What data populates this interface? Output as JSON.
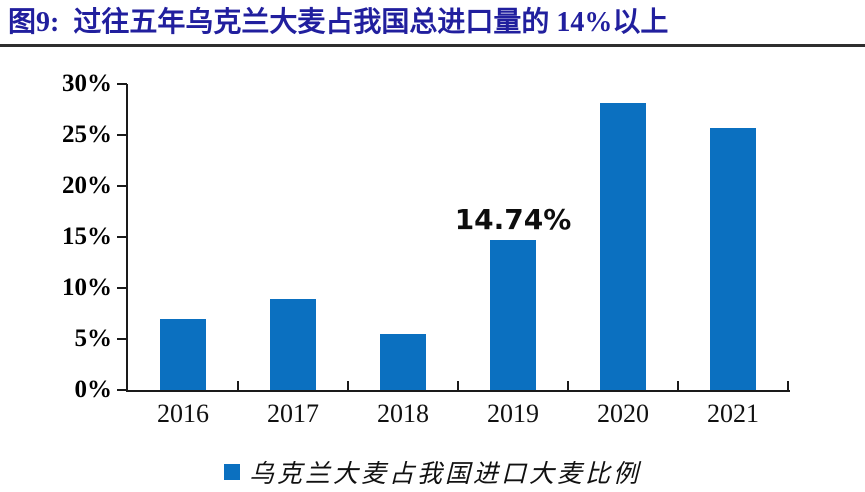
{
  "figure": {
    "title": "图9:  过往五年乌克兰大麦占我国总进口量的 14%以上"
  },
  "colors": {
    "title_text": "#211F9E",
    "bar_fill": "#0B70C0",
    "axis": "#1A1A1A",
    "title_rule": "#2E2E2E",
    "label_text": "#000000"
  },
  "chart_data": {
    "type": "bar",
    "title": "过往五年乌克兰大麦占我国总进口量的 14%以上",
    "categories": [
      "2016",
      "2017",
      "2018",
      "2019",
      "2020",
      "2021"
    ],
    "values": [
      7.0,
      8.9,
      5.5,
      14.74,
      28.1,
      25.7
    ],
    "ylim": [
      0,
      30
    ],
    "y_ticks": [
      "30%",
      "25%",
      "20%",
      "15%",
      "10%",
      "5%",
      "0%"
    ],
    "xlabel": "",
    "ylabel": "",
    "grid": false,
    "legend_position": "bottom",
    "legend": [
      "乌克兰大麦占我国进口大麦比例"
    ],
    "annotations": [
      {
        "category": "2019",
        "text": "14.74%"
      }
    ]
  },
  "legend": {
    "label": "乌克兰大麦占我国进口大麦比例"
  }
}
